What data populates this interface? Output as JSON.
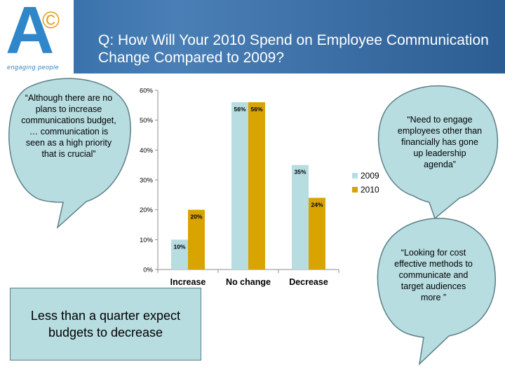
{
  "title": "Q: How Will Your 2010 Spend on Employee Communication Change Compared to 2009?",
  "logo": {
    "letter": "A",
    "mark": "©",
    "tagline": "engaging people"
  },
  "bubbles": {
    "left": "“Although there are no plans to increase communications budget, … communication is seen as a high priority that is crucial”",
    "right_top": "“Need to engage employees other than financially has gone up leadership agenda”",
    "right_bottom": "“Looking for cost effective methods to communicate and target audiences more ”"
  },
  "callout": "Less than a quarter expect budgets to decrease",
  "colors": {
    "series_2009": "#b7dde1",
    "series_2010": "#d9a400",
    "bubble": "#b7dde1",
    "bubble_border": "#5a7f86"
  },
  "chart_data": {
    "type": "bar",
    "categories": [
      "Increase",
      "No change",
      "Decrease"
    ],
    "series": [
      {
        "name": "2009",
        "values": [
          10,
          56,
          35
        ],
        "labels": [
          "10%",
          "56%",
          "35%"
        ]
      },
      {
        "name": "2010",
        "values": [
          20,
          56,
          24
        ],
        "labels": [
          "20%",
          "56%",
          "24%"
        ]
      }
    ],
    "ylim": [
      0,
      60
    ],
    "yticks": [
      "0%",
      "10%",
      "20%",
      "30%",
      "40%",
      "50%",
      "60%"
    ],
    "ytick_values": [
      0,
      10,
      20,
      30,
      40,
      50,
      60
    ],
    "legend": "right",
    "grid": false
  }
}
